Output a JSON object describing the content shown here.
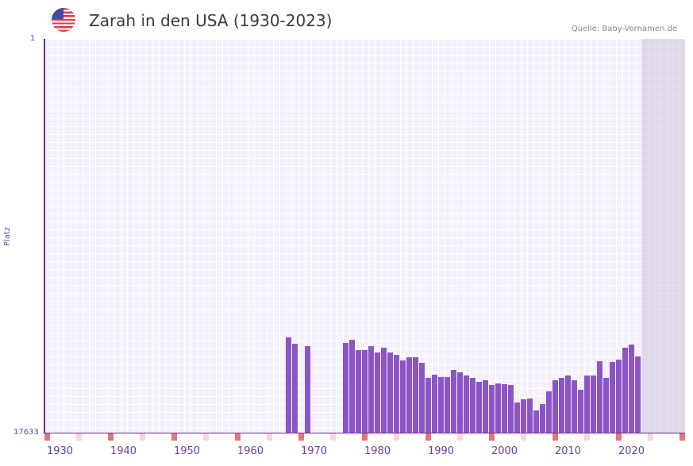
{
  "header": {
    "title": "Zarah in den USA (1930-2023)",
    "source": "Quelle: Baby-Vornamen.de",
    "flag_icon": "us-flag-icon"
  },
  "colors": {
    "bar": "#8c55c6",
    "axis": "#6a2c91",
    "decade_marker": "#e5747a",
    "half_decade_marker": "#f5d5df"
  },
  "chart_data": {
    "type": "bar",
    "title": "Zarah in den USA (1930-2023)",
    "xlabel": "",
    "ylabel": "Platz",
    "ylim": [
      17633,
      1
    ],
    "y_ticks": [
      "1",
      "17633"
    ],
    "x_ticks": [
      "1930",
      "1940",
      "1950",
      "1960",
      "1970",
      "1980",
      "1990",
      "2000",
      "2010",
      "2020"
    ],
    "grid": true,
    "categories": [
      1966,
      1967,
      1969,
      1975,
      1976,
      1977,
      1978,
      1979,
      1980,
      1981,
      1982,
      1983,
      1984,
      1985,
      1986,
      1987,
      1988,
      1989,
      1990,
      1991,
      1992,
      1993,
      1994,
      1995,
      1996,
      1997,
      1998,
      1999,
      2000,
      2001,
      2002,
      2003,
      2004,
      2005,
      2006,
      2007,
      2008,
      2009,
      2010,
      2011,
      2012,
      2013,
      2014,
      2015,
      2016,
      2017,
      2018,
      2019,
      2020,
      2021
    ],
    "values": [
      13370,
      13650,
      13760,
      13620,
      13480,
      13940,
      13940,
      13760,
      14050,
      13830,
      14050,
      14150,
      14400,
      14260,
      14260,
      14510,
      15180,
      15040,
      15150,
      15150,
      14830,
      14930,
      15080,
      15180,
      15360,
      15290,
      15500,
      15430,
      15470,
      15500,
      16290,
      16150,
      16110,
      16640,
      16360,
      15790,
      15290,
      15180,
      15080,
      15290,
      15720,
      15080,
      15080,
      14440,
      15180,
      14470,
      14370,
      13830,
      13690,
      14220
    ]
  }
}
